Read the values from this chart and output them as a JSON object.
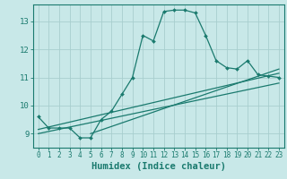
{
  "title": "",
  "xlabel": "Humidex (Indice chaleur)",
  "bg_color": "#c8e8e8",
  "line_color": "#1a7a6e",
  "grid_color": "#a8cece",
  "xlim": [
    -0.5,
    23.5
  ],
  "ylim": [
    8.5,
    13.6
  ],
  "yticks": [
    9,
    10,
    11,
    12,
    13
  ],
  "xticks": [
    0,
    1,
    2,
    3,
    4,
    5,
    6,
    7,
    8,
    9,
    10,
    11,
    12,
    13,
    14,
    15,
    16,
    17,
    18,
    19,
    20,
    21,
    22,
    23
  ],
  "line1_x": [
    0,
    1,
    2,
    3,
    4,
    5,
    6,
    7,
    8,
    9,
    10,
    11,
    12,
    13,
    14,
    15,
    16,
    17,
    18,
    19,
    20,
    21,
    22,
    23
  ],
  "line1_y": [
    9.6,
    9.2,
    9.2,
    9.2,
    8.85,
    8.85,
    9.5,
    9.8,
    10.4,
    11.0,
    12.5,
    12.3,
    13.35,
    13.4,
    13.4,
    13.3,
    12.5,
    11.6,
    11.35,
    11.3,
    11.6,
    11.1,
    11.05,
    11.0
  ],
  "line2_x": [
    0,
    23
  ],
  "line2_y": [
    9.15,
    11.15
  ],
  "line3_x": [
    0,
    23
  ],
  "line3_y": [
    9.0,
    10.8
  ],
  "line4_x": [
    5,
    23
  ],
  "line4_y": [
    9.0,
    11.3
  ]
}
